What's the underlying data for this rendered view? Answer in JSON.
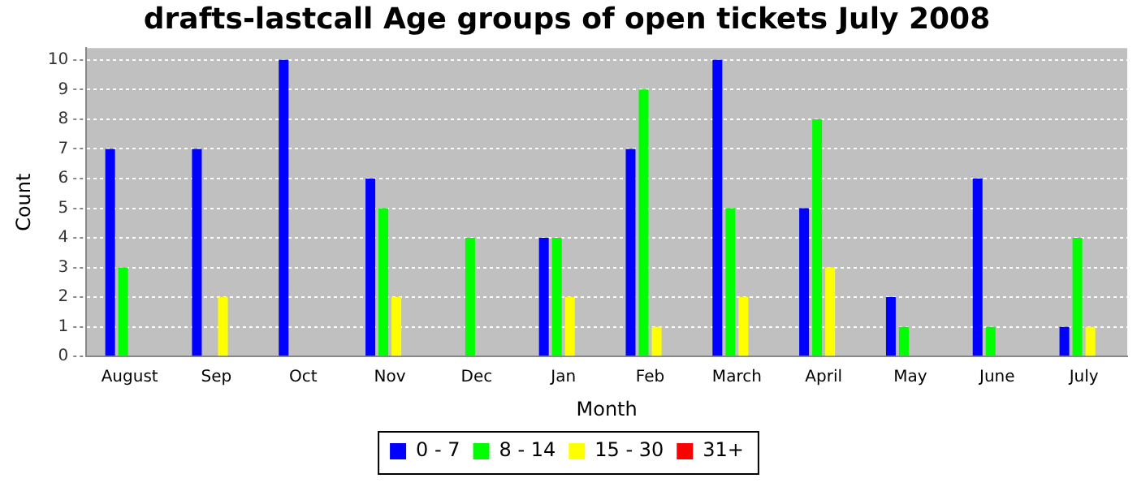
{
  "chart_data": {
    "type": "bar",
    "title": "drafts-lastcall Age groups of open tickets July 2008",
    "xlabel": "Month",
    "ylabel": "Count",
    "categories": [
      "August",
      "Sep",
      "Oct",
      "Nov",
      "Dec",
      "Jan",
      "Feb",
      "March",
      "April",
      "May",
      "June",
      "July"
    ],
    "series": [
      {
        "name": "0 - 7",
        "color": "#0000ff",
        "values": [
          7,
          7,
          10,
          6,
          0,
          4,
          7,
          10,
          5,
          2,
          6,
          1
        ]
      },
      {
        "name": "8 - 14",
        "color": "#00ff00",
        "values": [
          3,
          0,
          0,
          5,
          4,
          4,
          9,
          5,
          8,
          1,
          1,
          4
        ]
      },
      {
        "name": "15 - 30",
        "color": "#ffff00",
        "values": [
          0,
          2,
          0,
          2,
          0,
          2,
          1,
          2,
          3,
          0,
          0,
          1
        ]
      },
      {
        "name": "31+",
        "color": "#ff0000",
        "values": [
          0,
          0,
          0,
          0,
          0,
          0,
          0,
          0,
          0,
          0,
          0,
          0
        ]
      }
    ],
    "ylim": [
      0,
      10.4
    ],
    "yticks": [
      0,
      1,
      2,
      3,
      4,
      5,
      6,
      7,
      8,
      9,
      10
    ],
    "grid": "y",
    "legend": "bottom"
  }
}
